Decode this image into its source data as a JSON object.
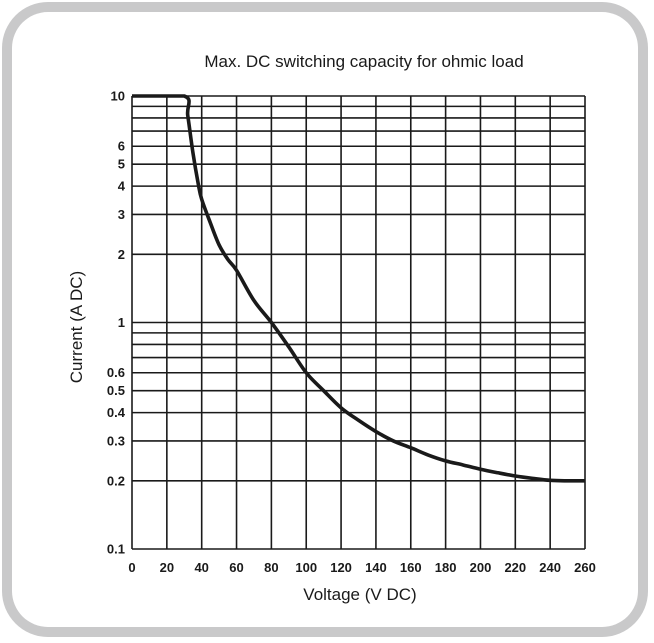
{
  "chart_data": {
    "type": "line",
    "title": "Max. DC switching capacity for ohmic load",
    "xlabel": "Voltage (V DC)",
    "ylabel": "Current (A DC)",
    "xlim": [
      0,
      260
    ],
    "ylim": [
      0.1,
      10
    ],
    "yscale": "log",
    "grid": true,
    "x_ticks": [
      0,
      20,
      40,
      60,
      80,
      100,
      120,
      140,
      160,
      180,
      200,
      220,
      240,
      260
    ],
    "y_ticks": [
      0.1,
      0.2,
      0.3,
      0.4,
      0.5,
      0.6,
      1,
      2,
      3,
      4,
      5,
      6,
      10
    ],
    "y_tick_labels": [
      "0.1",
      "0.2",
      "0.3",
      "0.4",
      "0.5",
      "0.6",
      "1",
      "2",
      "3",
      "4",
      "5",
      "6",
      "10"
    ],
    "y_gridlines": [
      0.1,
      0.2,
      0.3,
      0.4,
      0.5,
      0.6,
      0.7,
      0.8,
      0.9,
      1,
      2,
      3,
      4,
      5,
      6,
      7,
      8,
      9,
      10
    ],
    "series": [
      {
        "color": "#1a1a1a",
        "x": [
          0,
          30,
          32,
          35,
          38,
          40,
          45,
          50,
          55,
          60,
          70,
          80,
          90,
          100,
          110,
          120,
          130,
          140,
          150,
          160,
          170,
          180,
          190,
          200,
          210,
          220,
          230,
          240,
          250,
          260
        ],
        "y": [
          10,
          10,
          8.2,
          5.6,
          4.1,
          3.5,
          2.75,
          2.2,
          1.9,
          1.7,
          1.25,
          1.0,
          0.78,
          0.6,
          0.5,
          0.42,
          0.37,
          0.33,
          0.3,
          0.28,
          0.26,
          0.245,
          0.235,
          0.225,
          0.217,
          0.21,
          0.205,
          0.201,
          0.2,
          0.2
        ]
      }
    ]
  }
}
